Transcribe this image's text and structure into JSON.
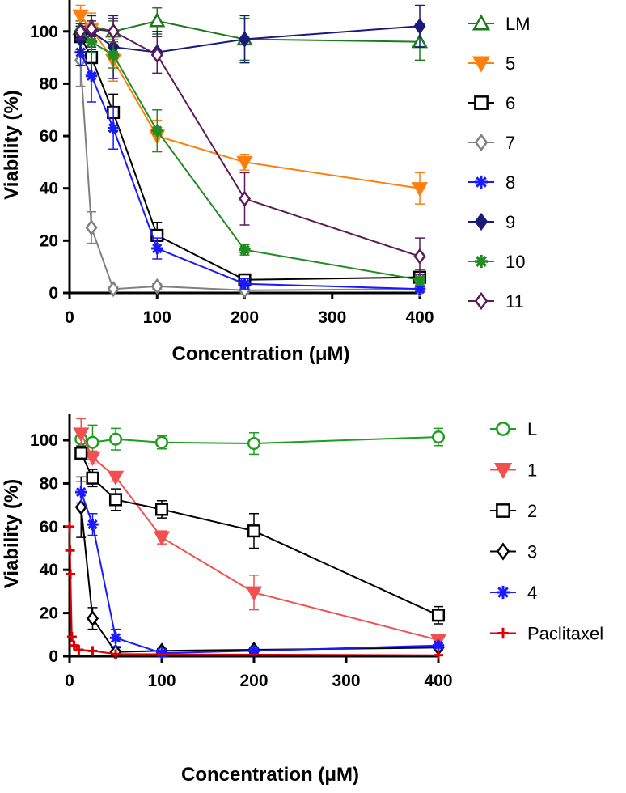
{
  "chart_data": [
    {
      "type": "line",
      "title": "",
      "xlabel": "Concentration (μM)",
      "ylabel": "Viability (%)",
      "xlim": [
        0,
        400
      ],
      "ylim": [
        0,
        112
      ],
      "xticks": [
        0,
        100,
        200,
        300,
        400
      ],
      "yticks": [
        0,
        20,
        40,
        60,
        80,
        100
      ],
      "grid": false,
      "legend_position": "right",
      "series": [
        {
          "name": "LM",
          "color": "#1e7a1e",
          "marker": "triangle-up-open",
          "x": [
            12.5,
            25,
            50,
            100,
            200,
            400
          ],
          "y": [
            101,
            102,
            100,
            104,
            97,
            96
          ],
          "err": [
            3,
            4,
            4,
            5,
            8,
            7
          ]
        },
        {
          "name": "5",
          "color": "#ff7f0e",
          "marker": "triangle-down-filled",
          "x": [
            12.5,
            25,
            50,
            100,
            200,
            400
          ],
          "y": [
            106,
            101,
            89,
            60,
            50,
            40
          ],
          "err": [
            4,
            6,
            8,
            6,
            3,
            6
          ]
        },
        {
          "name": "6",
          "color": "#000000",
          "marker": "square-open",
          "x": [
            12.5,
            25,
            50,
            100,
            200,
            400
          ],
          "y": [
            98,
            90,
            69,
            22,
            5,
            6
          ],
          "err": [
            5,
            6,
            7,
            5,
            2,
            3
          ]
        },
        {
          "name": "7",
          "color": "#808080",
          "marker": "diamond-open",
          "x": [
            12.5,
            25,
            50,
            100,
            200,
            400
          ],
          "y": [
            89,
            25,
            1.5,
            2.5,
            1,
            1.5
          ],
          "err": [
            10,
            6,
            1,
            1,
            1,
            1
          ]
        },
        {
          "name": "8",
          "color": "#1a1aff",
          "marker": "asterisk",
          "x": [
            12.5,
            25,
            50,
            100,
            200,
            400
          ],
          "y": [
            92,
            83,
            63,
            17,
            3.5,
            1.5
          ],
          "err": [
            5,
            10,
            8,
            4,
            2,
            1
          ]
        },
        {
          "name": "9",
          "color": "#1a1a7a",
          "marker": "diamond-filled",
          "x": [
            12.5,
            25,
            50,
            100,
            200,
            400
          ],
          "y": [
            97,
            100,
            94,
            92,
            97,
            102
          ],
          "err": [
            5,
            6,
            12,
            8,
            9,
            8
          ]
        },
        {
          "name": "10",
          "color": "#228b22",
          "marker": "star",
          "x": [
            12.5,
            25,
            50,
            100,
            200,
            400
          ],
          "y": [
            100,
            96,
            91,
            62,
            16.5,
            5
          ],
          "err": [
            3,
            4,
            5,
            8,
            2,
            2
          ]
        },
        {
          "name": "11",
          "color": "#5b1a5b",
          "marker": "diamond-open",
          "x": [
            12.5,
            25,
            50,
            100,
            200,
            400
          ],
          "y": [
            100,
            101,
            100,
            91,
            36,
            14
          ],
          "err": [
            3,
            3,
            5,
            7,
            10,
            7
          ]
        }
      ]
    },
    {
      "type": "line",
      "title": "",
      "xlabel": "Concentration (μM)",
      "ylabel": "Viability (%)",
      "xlim": [
        0,
        400
      ],
      "ylim": [
        0,
        112
      ],
      "xticks": [
        0,
        100,
        200,
        300,
        400
      ],
      "yticks": [
        0,
        20,
        40,
        60,
        80,
        100
      ],
      "grid": false,
      "legend_position": "right",
      "series": [
        {
          "name": "L",
          "color": "#1e9e1e",
          "marker": "circle-open",
          "x": [
            12.5,
            25,
            50,
            100,
            200,
            400
          ],
          "y": [
            100.5,
            99,
            100.5,
            99,
            98.5,
            101.5
          ],
          "err": [
            3,
            8,
            5,
            3,
            5,
            4
          ]
        },
        {
          "name": "1",
          "color": "#f05050",
          "marker": "triangle-down-filled",
          "x": [
            12.5,
            25,
            50,
            100,
            200,
            400
          ],
          "y": [
            103,
            92,
            83,
            55,
            29.5,
            7.5
          ],
          "err": [
            7,
            3,
            2,
            3,
            8,
            1.5
          ]
        },
        {
          "name": "2",
          "color": "#000000",
          "marker": "square-open",
          "x": [
            12.5,
            25,
            50,
            100,
            200,
            400
          ],
          "y": [
            94,
            82.5,
            72.5,
            68,
            58,
            19
          ],
          "err": [
            3,
            4,
            5,
            4,
            8,
            4
          ]
        },
        {
          "name": "3",
          "color": "#000000",
          "marker": "diamond-open",
          "x": [
            12.5,
            25,
            50,
            100,
            200,
            400
          ],
          "y": [
            69,
            17.5,
            2,
            2.5,
            3,
            4
          ],
          "err": [
            14,
            5,
            2,
            1,
            1,
            1
          ]
        },
        {
          "name": "4",
          "color": "#1a1aff",
          "marker": "asterisk",
          "x": [
            12.5,
            25,
            50,
            100,
            200,
            400
          ],
          "y": [
            76,
            61,
            8.5,
            1.5,
            2.5,
            5
          ],
          "err": [
            5,
            5,
            4,
            1,
            1,
            1
          ]
        },
        {
          "name": "Paclitaxel",
          "color": "#e00000",
          "marker": "plus",
          "x": [
            0.1,
            0.5,
            1,
            2.5,
            5,
            10,
            25,
            50,
            400
          ],
          "y": [
            60,
            49,
            38,
            9,
            5,
            3,
            2.5,
            1,
            0.5
          ],
          "err": [
            0,
            0,
            0,
            0,
            0,
            0,
            0,
            0,
            0
          ]
        }
      ]
    }
  ]
}
